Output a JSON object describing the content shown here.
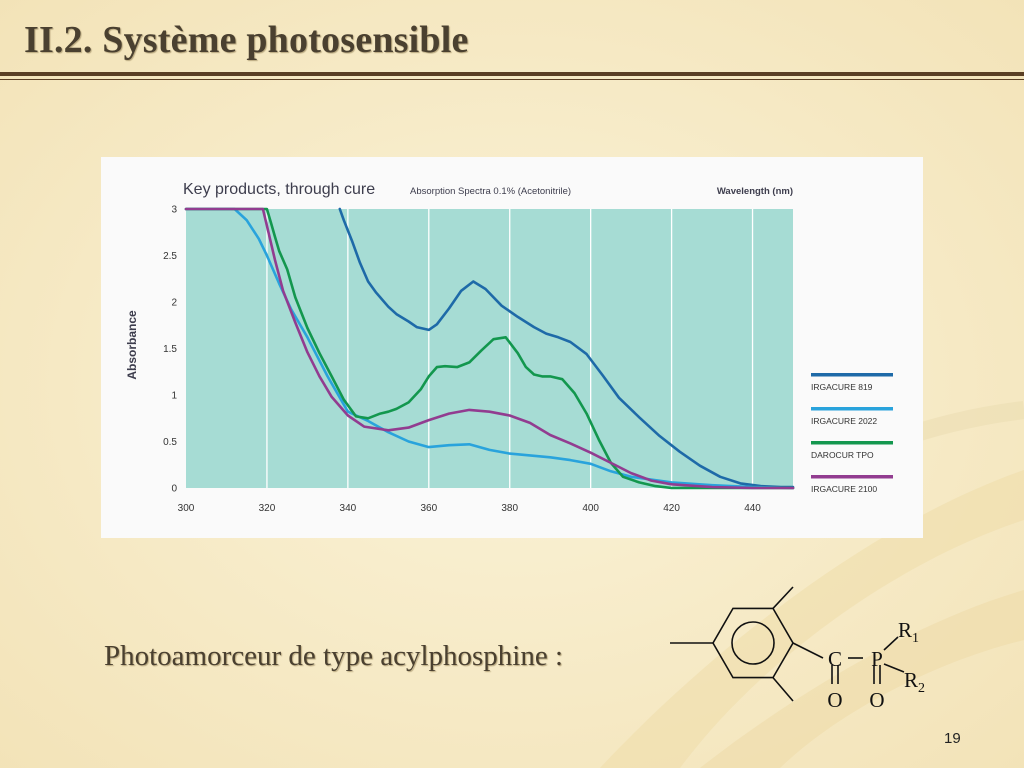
{
  "slide": {
    "title": "II.2. Système photosensible",
    "caption": "Photoamorceur de type acylphosphine :",
    "page_number": "19",
    "colors": {
      "background": "#f6ebc8",
      "rule": "#5a3f24",
      "text": "#4a4030"
    }
  },
  "molecule": {
    "atoms": {
      "carbon": "C",
      "phosphorus": "P",
      "oxygen": "O",
      "r1": "R",
      "r1_sub": "1",
      "r2": "R",
      "r2_sub": "2"
    }
  },
  "chart_data": {
    "type": "line",
    "title": "Key products, through cure",
    "subtitle": "Absorption Spectra 0.1% (Acetonitrile)",
    "xlabel": "Wavelength (nm)",
    "ylabel": "Absorbance",
    "xlim": [
      300,
      450
    ],
    "ylim": [
      0,
      3
    ],
    "x_ticks": [
      300,
      320,
      340,
      360,
      380,
      400,
      420,
      440
    ],
    "y_ticks": [
      0,
      0.5,
      1,
      1.5,
      2,
      2.5,
      3
    ],
    "y_tick_labels": [
      "0",
      "0.5",
      "1",
      "1.5",
      "2",
      "2.5",
      "3"
    ],
    "grid": "vertical",
    "plot_background": "#a6dcd4",
    "legend_position": "right",
    "series": [
      {
        "name": "IRGACURE 819",
        "color": "#1e6aa8",
        "x": [
          338,
          339,
          341,
          343,
          345,
          347,
          350,
          352,
          355,
          357,
          360,
          362,
          365,
          368,
          371,
          374,
          378,
          382,
          386,
          389,
          392,
          395,
          399,
          403,
          407,
          412,
          417,
          422,
          427,
          432,
          437,
          442,
          447,
          450
        ],
        "y": [
          3.0,
          2.88,
          2.66,
          2.42,
          2.22,
          2.1,
          1.95,
          1.87,
          1.79,
          1.73,
          1.7,
          1.76,
          1.93,
          2.12,
          2.22,
          2.14,
          1.96,
          1.84,
          1.73,
          1.66,
          1.62,
          1.57,
          1.44,
          1.21,
          0.97,
          0.76,
          0.56,
          0.39,
          0.24,
          0.12,
          0.05,
          0.02,
          0.01,
          0.01
        ]
      },
      {
        "name": "IRGACURE 2022",
        "color": "#29a3dc",
        "x": [
          300,
          312,
          315,
          318,
          320,
          323,
          326,
          330,
          335,
          340,
          345,
          350,
          355,
          360,
          365,
          370,
          375,
          380,
          390,
          395,
          400,
          405,
          410,
          420,
          430,
          440,
          450
        ],
        "y": [
          3.0,
          3.0,
          2.88,
          2.68,
          2.5,
          2.2,
          1.92,
          1.62,
          1.2,
          0.82,
          0.72,
          0.6,
          0.5,
          0.44,
          0.46,
          0.47,
          0.41,
          0.37,
          0.33,
          0.3,
          0.26,
          0.18,
          0.12,
          0.06,
          0.03,
          0.01,
          0.0
        ]
      },
      {
        "name": "DAROCUR TPO",
        "color": "#13974e",
        "x": [
          300,
          320,
          321,
          322,
          323,
          325,
          327,
          330,
          333,
          336,
          339,
          342,
          345,
          348,
          350,
          352,
          355,
          358,
          360,
          362,
          364,
          367,
          370,
          373,
          376,
          379,
          382,
          384,
          386,
          388,
          390,
          393,
          396,
          399,
          402,
          405,
          408,
          412,
          416,
          420,
          450
        ],
        "y": [
          3.0,
          3.0,
          2.85,
          2.7,
          2.55,
          2.35,
          2.05,
          1.72,
          1.45,
          1.2,
          0.95,
          0.77,
          0.75,
          0.8,
          0.82,
          0.85,
          0.92,
          1.06,
          1.2,
          1.3,
          1.31,
          1.3,
          1.35,
          1.48,
          1.6,
          1.62,
          1.45,
          1.3,
          1.22,
          1.2,
          1.2,
          1.17,
          1.02,
          0.8,
          0.52,
          0.27,
          0.12,
          0.06,
          0.02,
          0.0,
          0.0
        ]
      },
      {
        "name": "IRGACURE 2100",
        "color": "#923c90",
        "x": [
          300,
          319,
          320,
          322,
          324,
          327,
          330,
          333,
          336,
          340,
          344,
          350,
          355,
          360,
          365,
          370,
          375,
          380,
          385,
          390,
          395,
          400,
          405,
          410,
          415,
          420,
          430,
          440,
          450
        ],
        "y": [
          3.0,
          3.0,
          2.82,
          2.45,
          2.12,
          1.78,
          1.46,
          1.2,
          0.98,
          0.78,
          0.66,
          0.62,
          0.65,
          0.73,
          0.8,
          0.84,
          0.82,
          0.78,
          0.7,
          0.57,
          0.48,
          0.38,
          0.27,
          0.16,
          0.08,
          0.04,
          0.01,
          0.0,
          0.0
        ]
      }
    ]
  }
}
